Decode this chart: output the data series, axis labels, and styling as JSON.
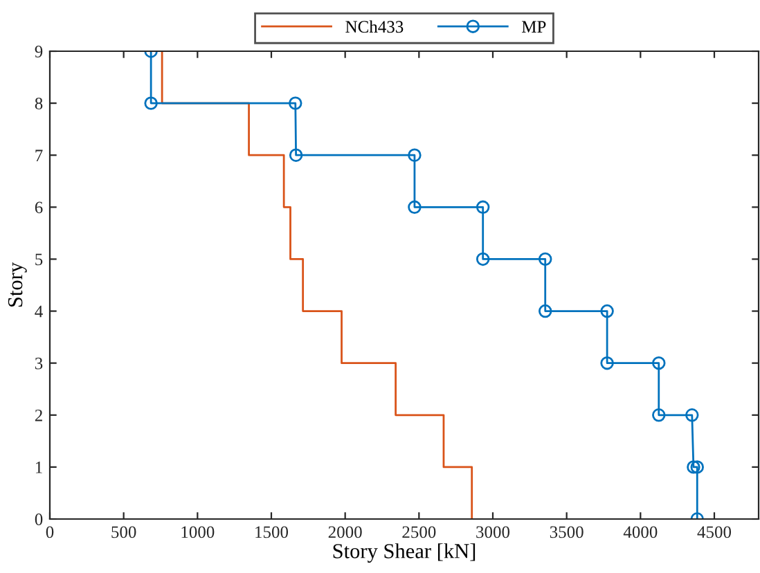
{
  "chart_data": {
    "type": "line",
    "xlabel": "Story Shear [kN]",
    "ylabel": "Story",
    "series": [
      {
        "name": "NCh433",
        "color": "#d95319",
        "marker": "none",
        "x": [
          760,
          760,
          1348,
          1348,
          1585,
          1585,
          1629,
          1629,
          1714,
          1714,
          1976,
          1976,
          2342,
          2342,
          2667,
          2667,
          2858,
          2858
        ],
        "values": [
          9,
          8,
          8,
          7,
          7,
          6,
          6,
          5,
          5,
          4,
          4,
          3,
          3,
          2,
          2,
          1,
          1,
          0
        ]
      },
      {
        "name": "MP",
        "color": "#0072bd",
        "marker": "circle",
        "x": [
          685,
          685,
          1663,
          1667,
          2470,
          2470,
          2933,
          2933,
          3355,
          3355,
          3774,
          3774,
          4124,
          4124,
          4349,
          4359,
          4384,
          4384
        ],
        "values": [
          9,
          8,
          8,
          7,
          7,
          6,
          6,
          5,
          5,
          4,
          4,
          3,
          3,
          2,
          2,
          1,
          1,
          0
        ]
      }
    ],
    "xlim": [
      0,
      4800
    ],
    "xticks": [
      0,
      500,
      1000,
      1500,
      2000,
      2500,
      3000,
      3500,
      4000,
      4500
    ],
    "ylim": [
      0,
      9
    ],
    "yticks": [
      0,
      1,
      2,
      3,
      4,
      5,
      6,
      7,
      8,
      9
    ],
    "grid": false,
    "legend": "top"
  }
}
